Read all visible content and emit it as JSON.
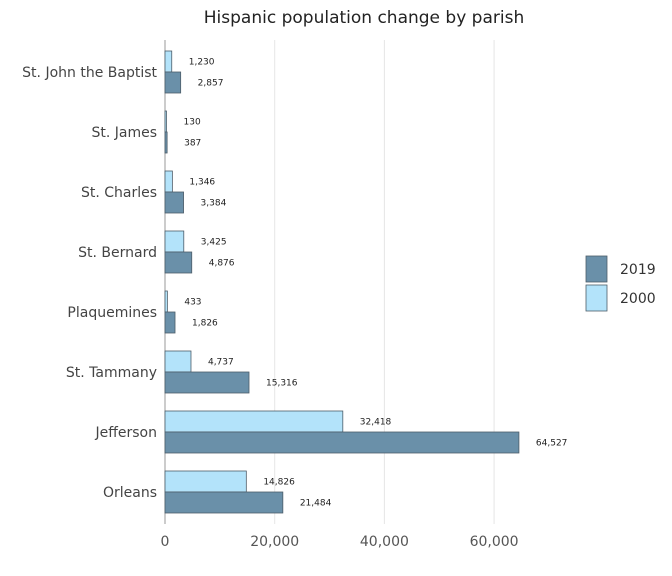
{
  "chart_data": {
    "type": "bar",
    "orientation": "horizontal",
    "title": "Hispanic population change by parish",
    "xlabel": "",
    "ylabel": "",
    "categories": [
      "St. John the Baptist",
      "St. James",
      "St. Charles",
      "St. Bernard",
      "Plaquemines",
      "St. Tammany",
      "Jefferson",
      "Orleans"
    ],
    "series": [
      {
        "name": "2000",
        "color": "#b3e3fa",
        "values": [
          1230,
          130,
          1346,
          3425,
          433,
          4737,
          32418,
          14826
        ],
        "labels": [
          "1,230",
          "130",
          "1,346",
          "3,425",
          "433",
          "4,737",
          "32,418",
          "14,826"
        ]
      },
      {
        "name": "2019",
        "color": "#6a90a9",
        "values": [
          2857,
          387,
          3384,
          4876,
          1826,
          15316,
          64527,
          21484
        ],
        "labels": [
          "2,857",
          "387",
          "3,384",
          "4,876",
          "1,826",
          "15,316",
          "64,527",
          "21,484"
        ]
      }
    ],
    "xlim": [
      0,
      66000
    ],
    "xticks": [
      0,
      20000,
      40000,
      60000
    ],
    "xtick_labels": [
      "0",
      "20,000",
      "40,000",
      "60,000"
    ],
    "grid": true,
    "legend": {
      "position": "right",
      "entries": [
        {
          "name": "2019",
          "color": "#6a90a9"
        },
        {
          "name": "2000",
          "color": "#b3e3fa"
        }
      ]
    }
  }
}
